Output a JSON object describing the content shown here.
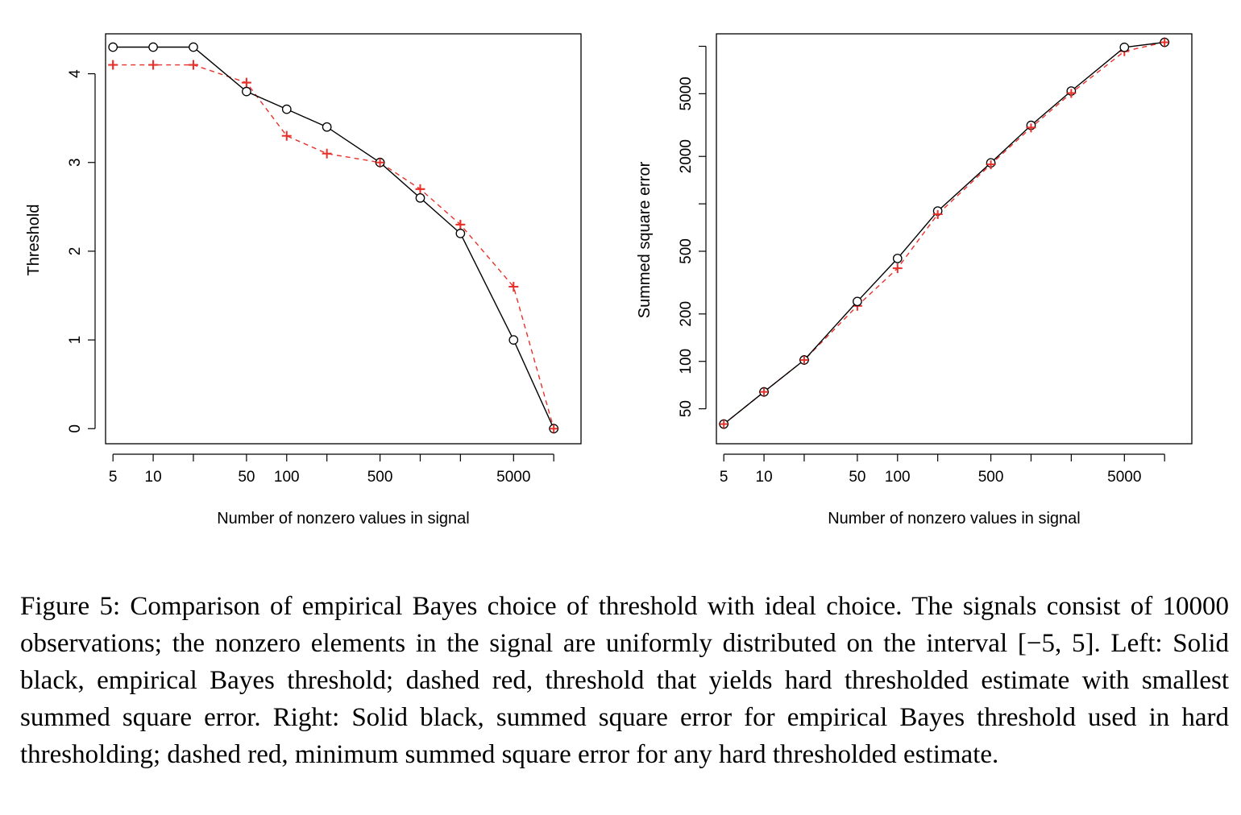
{
  "chart_data": [
    {
      "type": "line",
      "xlabel": "Number of nonzero values in signal",
      "ylabel": "Threshold",
      "x_scale": "log",
      "xlim": [
        4.4,
        16000
      ],
      "ylim": [
        -0.17,
        4.45
      ],
      "x_ticks": [
        5,
        10,
        20,
        50,
        100,
        200,
        500,
        1000,
        2000,
        5000,
        10000
      ],
      "x_tick_labels": [
        "5",
        "10",
        "",
        "50",
        "100",
        "",
        "500",
        "",
        "",
        "5000",
        ""
      ],
      "y_ticks": [
        0,
        1,
        2,
        3,
        4
      ],
      "y_tick_labels": [
        "0",
        "1",
        "2",
        "3",
        "4"
      ],
      "x": [
        5,
        10,
        20,
        50,
        100,
        200,
        500,
        1000,
        2000,
        5000,
        10000
      ],
      "series": [
        {
          "values": [
            4.3,
            4.3,
            4.3,
            3.8,
            3.6,
            3.4,
            3.0,
            2.6,
            2.2,
            1.0,
            0.0
          ],
          "color": "#000000",
          "line": "solid",
          "marker": "circle"
        },
        {
          "values": [
            4.1,
            4.1,
            4.1,
            3.9,
            3.3,
            3.1,
            3.0,
            2.7,
            2.3,
            1.6,
            0.0
          ],
          "color": "#e8312a",
          "line": "dashed",
          "marker": "plus"
        }
      ]
    },
    {
      "type": "line",
      "xlabel": "Number of nonzero values in signal",
      "ylabel": "Summed square error",
      "x_scale": "log",
      "y_scale": "log",
      "xlim": [
        4.4,
        16000
      ],
      "ylim": [
        30,
        12000
      ],
      "x_ticks": [
        5,
        10,
        20,
        50,
        100,
        200,
        500,
        1000,
        2000,
        5000,
        10000
      ],
      "x_tick_labels": [
        "5",
        "10",
        "",
        "50",
        "100",
        "",
        "500",
        "",
        "",
        "5000",
        ""
      ],
      "y_ticks": [
        50,
        100,
        200,
        500,
        1000,
        2000,
        5000,
        10000
      ],
      "y_tick_labels": [
        "50",
        "100",
        "200",
        "500",
        "",
        "2000",
        "5000",
        ""
      ],
      "x": [
        5,
        10,
        20,
        50,
        100,
        200,
        500,
        1000,
        2000,
        5000,
        10000
      ],
      "series": [
        {
          "values": [
            40,
            64,
            102,
            240,
            450,
            900,
            1820,
            3150,
            5200,
            9850,
            10600
          ],
          "color": "#000000",
          "line": "solid",
          "marker": "circle"
        },
        {
          "values": [
            40,
            64,
            102,
            225,
            390,
            860,
            1780,
            3050,
            5050,
            9300,
            10600
          ],
          "color": "#e8312a",
          "line": "dashed",
          "marker": "plus"
        }
      ]
    }
  ],
  "caption": "Figure 5: Comparison of empirical Bayes choice of threshold with ideal choice. The signals consist of 10000 observations; the nonzero elements in the signal are uniformly distributed on the interval [−5, 5]. Left: Solid black, empirical Bayes threshold; dashed red, threshold that yields hard thresholded estimate with smallest summed square error. Right: Solid black, summed square error for empirical Bayes threshold used in hard thresholding; dashed red, minimum summed square error for any hard thresholded estimate."
}
